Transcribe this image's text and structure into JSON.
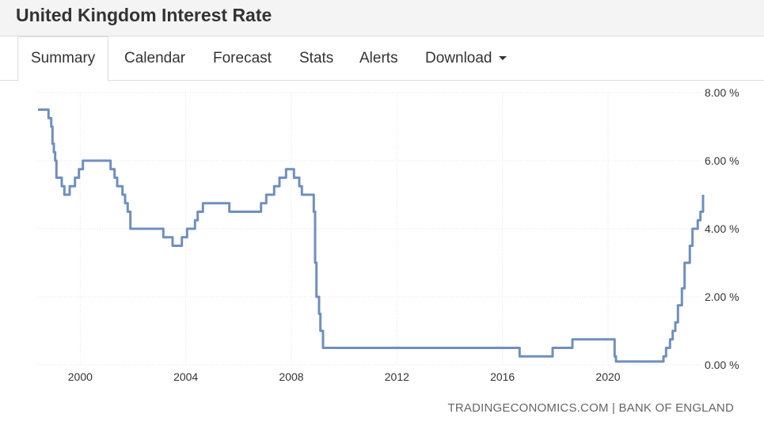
{
  "page": {
    "title": "United Kingdom Interest Rate"
  },
  "tabs": [
    {
      "label": "Summary",
      "active": true
    },
    {
      "label": "Calendar"
    },
    {
      "label": "Forecast"
    },
    {
      "label": "Stats"
    },
    {
      "label": "Alerts"
    },
    {
      "label": "Download",
      "has_dropdown": true
    }
  ],
  "source": {
    "text": "TRADINGECONOMICS.COM | BANK OF ENGLAND"
  },
  "colors": {
    "line": "#6f8fbf",
    "grid": "#e6e6e6",
    "text": "#333333"
  },
  "chart_data": {
    "type": "line",
    "title": "",
    "xlabel": "",
    "ylabel": "",
    "x_ticks": [
      "2000",
      "2004",
      "2008",
      "2012",
      "2016",
      "2020"
    ],
    "y_ticks": [
      "8.00 %",
      "6.00 %",
      "4.00 %",
      "2.00 %",
      "0.00 %"
    ],
    "xlim": [
      1998.4,
      2023.6
    ],
    "ylim": [
      0,
      8
    ],
    "grid": true,
    "y_axis_position": "right",
    "series": [
      {
        "values": [
          [
            1998.4,
            7.5
          ],
          [
            1998.75,
            7.5
          ],
          [
            1998.8,
            7.25
          ],
          [
            1998.9,
            7.0
          ],
          [
            1998.95,
            6.5
          ],
          [
            1999.0,
            6.25
          ],
          [
            1999.05,
            6.0
          ],
          [
            1999.1,
            5.5
          ],
          [
            1999.3,
            5.25
          ],
          [
            1999.4,
            5.0
          ],
          [
            1999.6,
            5.25
          ],
          [
            1999.8,
            5.5
          ],
          [
            1999.95,
            5.75
          ],
          [
            2000.1,
            6.0
          ],
          [
            2001.1,
            6.0
          ],
          [
            2001.15,
            5.75
          ],
          [
            2001.3,
            5.5
          ],
          [
            2001.4,
            5.25
          ],
          [
            2001.6,
            5.0
          ],
          [
            2001.7,
            4.75
          ],
          [
            2001.8,
            4.5
          ],
          [
            2001.9,
            4.0
          ],
          [
            2003.1,
            4.0
          ],
          [
            2003.15,
            3.75
          ],
          [
            2003.5,
            3.5
          ],
          [
            2003.85,
            3.75
          ],
          [
            2004.05,
            4.0
          ],
          [
            2004.35,
            4.25
          ],
          [
            2004.45,
            4.5
          ],
          [
            2004.65,
            4.75
          ],
          [
            2005.6,
            4.75
          ],
          [
            2005.65,
            4.5
          ],
          [
            2006.6,
            4.5
          ],
          [
            2006.85,
            4.75
          ],
          [
            2007.05,
            5.0
          ],
          [
            2007.35,
            5.25
          ],
          [
            2007.55,
            5.5
          ],
          [
            2007.8,
            5.75
          ],
          [
            2007.95,
            5.75
          ],
          [
            2008.1,
            5.5
          ],
          [
            2008.3,
            5.25
          ],
          [
            2008.4,
            5.0
          ],
          [
            2008.8,
            5.0
          ],
          [
            2008.85,
            4.5
          ],
          [
            2008.9,
            3.0
          ],
          [
            2008.95,
            2.0
          ],
          [
            2009.05,
            1.5
          ],
          [
            2009.1,
            1.0
          ],
          [
            2009.2,
            0.5
          ],
          [
            2016.6,
            0.5
          ],
          [
            2016.65,
            0.25
          ],
          [
            2017.85,
            0.25
          ],
          [
            2017.9,
            0.5
          ],
          [
            2018.6,
            0.5
          ],
          [
            2018.65,
            0.75
          ],
          [
            2020.2,
            0.75
          ],
          [
            2020.25,
            0.25
          ],
          [
            2020.3,
            0.1
          ],
          [
            2021.95,
            0.1
          ],
          [
            2022.1,
            0.25
          ],
          [
            2022.2,
            0.5
          ],
          [
            2022.35,
            0.75
          ],
          [
            2022.45,
            1.0
          ],
          [
            2022.55,
            1.25
          ],
          [
            2022.65,
            1.75
          ],
          [
            2022.8,
            2.25
          ],
          [
            2022.9,
            3.0
          ],
          [
            2023.1,
            3.5
          ],
          [
            2023.2,
            4.0
          ],
          [
            2023.4,
            4.25
          ],
          [
            2023.5,
            4.5
          ],
          [
            2023.6,
            5.0
          ]
        ]
      }
    ]
  }
}
